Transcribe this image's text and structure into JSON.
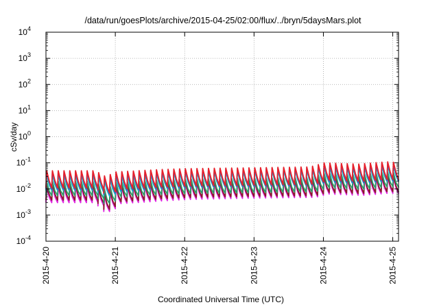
{
  "chart_data": {
    "type": "line",
    "title": "/data/run/goesPlots/archive/2015-04-25/02:00/flux/../bryn/5daysMars.plot",
    "xlabel": "Coordinated Universal Time (UTC)",
    "ylabel": "cSv/day",
    "y_scale": "log",
    "ylim": [
      0.0001,
      10000
    ],
    "y_ticks": [
      {
        "value": 0.0001,
        "base": "10",
        "exp": "-4"
      },
      {
        "value": 0.001,
        "base": "10",
        "exp": "-3"
      },
      {
        "value": 0.01,
        "base": "10",
        "exp": "-2"
      },
      {
        "value": 0.1,
        "base": "10",
        "exp": "-1"
      },
      {
        "value": 1,
        "base": "10",
        "exp": "0"
      },
      {
        "value": 10,
        "base": "10",
        "exp": "1"
      },
      {
        "value": 100,
        "base": "10",
        "exp": "2"
      },
      {
        "value": 1000,
        "base": "10",
        "exp": "3"
      },
      {
        "value": 10000,
        "base": "10",
        "exp": "4"
      }
    ],
    "xlim": [
      "2015-04-20T00:00",
      "2015-04-25T02:00"
    ],
    "x_ticks": [
      "2015-4-20",
      "2015-4-21",
      "2015-4-22",
      "2015-4-23",
      "2015-4-24",
      "2015-4-25"
    ],
    "grid": true,
    "legend": "none",
    "sawtooth_period_hours": 2,
    "series": [
      {
        "color": "#e8202a",
        "start_day_offset": 0.0,
        "baseline_peak": [
          [
            0,
            0.05
          ],
          [
            0.7,
            0.05
          ],
          [
            0.85,
            0.03
          ],
          [
            1.0,
            0.045
          ],
          [
            1.6,
            0.055
          ],
          [
            2.0,
            0.06
          ],
          [
            3.0,
            0.065
          ],
          [
            3.8,
            0.07
          ],
          [
            4.0,
            0.1
          ],
          [
            4.5,
            0.09
          ],
          [
            4.9,
            0.11
          ],
          [
            5.1,
            0.1
          ]
        ],
        "trough_ratio": 0.22
      },
      {
        "color": "#2f5fd6",
        "start_day_offset": 0.0,
        "baseline_peak": [
          [
            0,
            0.045
          ],
          [
            0.7,
            0.045
          ],
          [
            0.85,
            0.027
          ],
          [
            1.0,
            0.04
          ],
          [
            1.6,
            0.05
          ],
          [
            2.0,
            0.055
          ],
          [
            3.0,
            0.06
          ],
          [
            3.8,
            0.065
          ],
          [
            4.0,
            0.09
          ],
          [
            4.5,
            0.08
          ],
          [
            4.9,
            0.1
          ],
          [
            5.1,
            0.09
          ]
        ],
        "trough_ratio": 0.22
      },
      {
        "color": "#20b4c4",
        "start_day_offset": 0.0,
        "baseline_peak": [
          [
            0,
            0.035
          ],
          [
            0.7,
            0.035
          ],
          [
            0.85,
            0.02
          ],
          [
            1.0,
            0.03
          ],
          [
            1.6,
            0.04
          ],
          [
            2.0,
            0.045
          ],
          [
            3.0,
            0.05
          ],
          [
            3.8,
            0.055
          ],
          [
            4.0,
            0.07
          ],
          [
            4.5,
            0.065
          ],
          [
            4.9,
            0.08
          ],
          [
            5.1,
            0.075
          ]
        ],
        "trough_ratio": 0.25
      },
      {
        "color": "#2a9d6a",
        "start_day_offset": 0.0,
        "baseline_peak": [
          [
            0,
            0.02
          ],
          [
            0.7,
            0.02
          ],
          [
            0.85,
            0.009
          ],
          [
            1.0,
            0.018
          ],
          [
            1.6,
            0.022
          ],
          [
            2.0,
            0.024
          ],
          [
            3.0,
            0.026
          ],
          [
            3.8,
            0.028
          ],
          [
            4.0,
            0.04
          ],
          [
            4.5,
            0.035
          ],
          [
            4.9,
            0.045
          ],
          [
            5.1,
            0.04
          ]
        ],
        "trough_ratio": 0.28
      },
      {
        "color": "#8a1a2a",
        "start_day_offset": 0.0,
        "baseline_peak": [
          [
            0,
            0.015
          ],
          [
            0.7,
            0.015
          ],
          [
            0.85,
            0.006
          ],
          [
            1.0,
            0.013
          ],
          [
            1.6,
            0.017
          ],
          [
            2.0,
            0.019
          ],
          [
            3.0,
            0.021
          ],
          [
            3.8,
            0.022
          ],
          [
            4.0,
            0.03
          ],
          [
            4.5,
            0.027
          ],
          [
            4.9,
            0.033
          ],
          [
            5.1,
            0.03
          ]
        ],
        "trough_ratio": 0.25
      },
      {
        "color": "#e020e0",
        "start_day_offset": 0.0,
        "baseline_peak": [
          [
            0,
            0.012
          ],
          [
            0.7,
            0.012
          ],
          [
            0.85,
            0.005
          ],
          [
            1.0,
            0.011
          ],
          [
            1.6,
            0.014
          ],
          [
            2.0,
            0.016
          ],
          [
            3.0,
            0.018
          ],
          [
            3.8,
            0.019
          ],
          [
            4.0,
            0.026
          ],
          [
            4.5,
            0.023
          ],
          [
            4.9,
            0.028
          ],
          [
            5.1,
            0.026
          ]
        ],
        "trough_ratio": 0.25
      }
    ]
  }
}
